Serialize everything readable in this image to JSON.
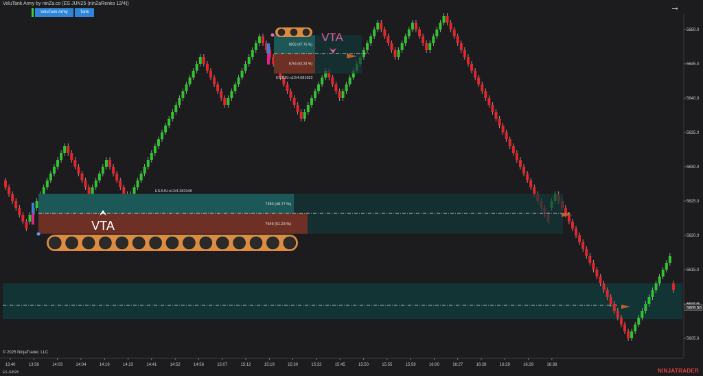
{
  "header": {
    "title": "VoluTank Army by ninZa.co (ES JUN25 (ninZaRenko 12/4))",
    "tabs": [
      "VoluTank Army",
      "Tank"
    ]
  },
  "footer": {
    "copyright": "© 2025 NinjaTrader, LLC",
    "instrument": "ES JUN25",
    "brand": "NINJATRADER"
  },
  "colors": {
    "background": "#1c1c1e",
    "bull": "#2fc52f",
    "bear": "#e8242a",
    "upper_zone": "#123838",
    "lower_zone": "#6e3025",
    "tank": "#dc8c42",
    "vta_upper": "#e060a0"
  },
  "chart_data": {
    "type": "candlestick",
    "renko_box": 1,
    "y_ticks": [
      5605.0,
      5610.0,
      5615.0,
      5620.0,
      5625.0,
      5630.0,
      5635.0,
      5640.0,
      5645.0,
      5650.0
    ],
    "x_labels": [
      "13:40",
      "13:56",
      "14:03",
      "14:04",
      "14:16",
      "14:23",
      "14:41",
      "14:52",
      "14:56",
      "15:07",
      "15:12",
      "15:19",
      "15:30",
      "15:32",
      "15:45",
      "15:50",
      "15:55",
      "15:59",
      "16:00",
      "16:27",
      "16:28",
      "16:29",
      "16:29",
      "16:38"
    ],
    "last_price": "5609.50",
    "price_markers": [
      "5610.00",
      "5609.50"
    ],
    "tanks": [
      {
        "label": "VTA",
        "id_label": "ESJUN-n12/4.382948",
        "upper_label": "7283 (48.77 %)",
        "lower_label": "7649 (51.23 %)",
        "upper_volume": 7283,
        "upper_pct": 48.77,
        "lower_volume": 7649,
        "lower_pct": 51.23,
        "wheels": 15,
        "price_mid": 5623.2,
        "direction": "up"
      },
      {
        "label": "VTA",
        "id_label": "ESJUN-n12/4.081652",
        "upper_label": "8002 (47.76 %)",
        "lower_label": "8754 (52.24 %)",
        "upper_volume": 8002,
        "upper_pct": 47.76,
        "lower_volume": 8754,
        "lower_pct": 52.24,
        "wheels": 3,
        "price_mid": 5646.5,
        "direction": "down"
      }
    ],
    "zone": {
      "price_low": 5607.8,
      "price_high": 5613.0,
      "level": 5609.8
    },
    "closes": [
      5627,
      5626,
      5625,
      5624,
      5623,
      5622,
      5621,
      5623,
      5624,
      5625,
      5626,
      5627,
      5628,
      5629,
      5630,
      5631,
      5632,
      5633,
      5632,
      5631,
      5630,
      5629,
      5628,
      5627,
      5626,
      5627,
      5628,
      5629,
      5630,
      5631,
      5630,
      5629,
      5628,
      5627,
      5626,
      5625,
      5626,
      5627,
      5628,
      5629,
      5630,
      5631,
      5632,
      5633,
      5634,
      5635,
      5636,
      5637,
      5638,
      5639,
      5640,
      5641,
      5642,
      5643,
      5644,
      5645,
      5646,
      5645,
      5644,
      5643,
      5642,
      5641,
      5640,
      5639,
      5640,
      5641,
      5642,
      5643,
      5644,
      5645,
      5646,
      5647,
      5648,
      5649,
      5648,
      5647,
      5646,
      5645,
      5644,
      5643,
      5642,
      5641,
      5640,
      5639,
      5638,
      5637,
      5638,
      5639,
      5640,
      5641,
      5642,
      5643,
      5644,
      5643,
      5642,
      5641,
      5640,
      5641,
      5642,
      5643,
      5644,
      5645,
      5646,
      5647,
      5648,
      5649,
      5650,
      5651,
      5650,
      5649,
      5648,
      5647,
      5646,
      5647,
      5648,
      5649,
      5650,
      5651,
      5650,
      5649,
      5648,
      5647,
      5648,
      5649,
      5650,
      5651,
      5652,
      5651,
      5650,
      5649,
      5648,
      5647,
      5646,
      5645,
      5644,
      5643,
      5642,
      5641,
      5640,
      5639,
      5638,
      5637,
      5636,
      5635,
      5634,
      5633,
      5632,
      5631,
      5630,
      5629,
      5628,
      5627,
      5626,
      5625,
      5624,
      5623,
      5622,
      5625,
      5626,
      5625,
      5624,
      5623,
      5622,
      5621,
      5620,
      5619,
      5618,
      5617,
      5616,
      5615,
      5614,
      5613,
      5612,
      5611,
      5610,
      5609,
      5608,
      5607,
      5606,
      5605,
      5606,
      5607,
      5608,
      5609,
      5610,
      5611,
      5612,
      5613,
      5614,
      5615,
      5616,
      5617,
      5612
    ],
    "start_price": 5628
  }
}
